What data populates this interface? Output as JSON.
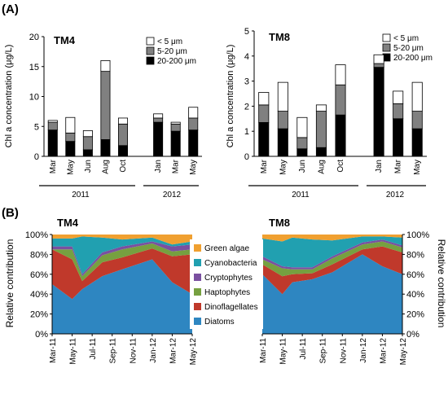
{
  "panels": {
    "a": "(A)",
    "b": "(B)"
  },
  "colors": {
    "lt5": "#ffffff",
    "mid": "#808080",
    "big": "#000000",
    "green_algae": "#f0a030",
    "cyanobacteria": "#21a0b0",
    "cryptophytes": "#7a50a0",
    "haptophytes": "#76a040",
    "dinoflagellates": "#c0392b",
    "diatoms": "#2e86c1"
  },
  "chart_data": [
    {
      "type": "bar",
      "stacked": true,
      "title": "TM4",
      "ylabel": "Chl a concentration (μg/L)",
      "ylim": [
        0,
        20
      ],
      "yticks": [
        0,
        5,
        10,
        15,
        20
      ],
      "categories": [
        "Mar",
        "May",
        "Jun",
        "Aug",
        "Oct",
        "Jan",
        "Mar",
        "May"
      ],
      "positions": [
        0,
        1,
        2,
        3,
        4,
        6,
        7,
        8
      ],
      "years": [
        {
          "label": "2011",
          "from": 0,
          "to": 4
        },
        {
          "label": "2012",
          "from": 6,
          "to": 8
        }
      ],
      "legend": [
        "< 5 μm",
        "5-20 μm",
        "20-200 μm"
      ],
      "series": [
        {
          "name": "20-200 μm",
          "values": [
            4.4,
            2.5,
            1.1,
            2.8,
            1.8,
            5.7,
            4.2,
            4.4
          ]
        },
        {
          "name": "5-20 μm",
          "values": [
            1.3,
            1.4,
            2.2,
            11.4,
            3.6,
            0.7,
            1.2,
            2.0
          ]
        },
        {
          "name": "< 5 μm",
          "values": [
            0.3,
            2.6,
            1.0,
            1.8,
            1.0,
            0.7,
            0.3,
            1.8
          ]
        }
      ]
    },
    {
      "type": "bar",
      "stacked": true,
      "title": "TM8",
      "ylabel": "Chl a concentration (μg/L)",
      "ylim": [
        0,
        5
      ],
      "yticks": [
        0,
        1,
        2,
        3,
        4,
        5
      ],
      "categories": [
        "Mar",
        "May",
        "Jun",
        "Aug",
        "Oct",
        "Jan",
        "Mar",
        "May"
      ],
      "positions": [
        0,
        1,
        2,
        3,
        4,
        6,
        7,
        8
      ],
      "years": [
        {
          "label": "2011",
          "from": 0,
          "to": 4
        },
        {
          "label": "2012",
          "from": 6,
          "to": 8
        }
      ],
      "legend": [
        "< 5 μm",
        "5-20 μm",
        "20-200 μm"
      ],
      "series": [
        {
          "name": "20-200 μm",
          "values": [
            1.35,
            1.1,
            0.3,
            0.35,
            1.65,
            3.55,
            1.5,
            1.1
          ]
        },
        {
          "name": "5-20 μm",
          "values": [
            0.7,
            0.7,
            0.45,
            1.45,
            1.2,
            0.15,
            0.6,
            0.7
          ]
        },
        {
          "name": "< 5 μm",
          "values": [
            0.5,
            1.15,
            0.8,
            0.25,
            0.8,
            0.35,
            0.5,
            1.15
          ]
        }
      ]
    },
    {
      "type": "area",
      "stacked": true,
      "title": "TM4",
      "ylabel": "Relative contribution",
      "ylim": [
        0,
        100
      ],
      "yticks": [
        "0%",
        "20%",
        "40%",
        "60%",
        "80%",
        "100%"
      ],
      "x": [
        "Mar-11",
        "May-11",
        "Jul-11",
        "Sep-11",
        "Nov-11",
        "Jan-12",
        "Mar-12",
        "May-12"
      ],
      "x_points": [
        "Mar-11",
        "May-11",
        "Jun-11",
        "Aug-11",
        "Oct-11",
        "Jan-12",
        "Mar-12",
        "May-12"
      ],
      "x_index": [
        0,
        1,
        1.5,
        2.5,
        3.5,
        5,
        6,
        7
      ],
      "series": [
        {
          "name": "Diatoms",
          "values": [
            50,
            35,
            45,
            58,
            65,
            75,
            52,
            40
          ]
        },
        {
          "name": "Dinoflagellates",
          "values": [
            35,
            40,
            8,
            14,
            12,
            11,
            26,
            40
          ]
        },
        {
          "name": "Haptophytes",
          "values": [
            0,
            10,
            5,
            7,
            8,
            5,
            5,
            5
          ]
        },
        {
          "name": "Cryptophytes",
          "values": [
            3,
            3,
            2,
            3,
            3,
            2,
            5,
            5
          ]
        },
        {
          "name": "Cyanobacteria",
          "values": [
            8,
            8,
            38,
            15,
            7,
            4,
            2,
            3
          ]
        },
        {
          "name": "Green algae",
          "values": [
            4,
            4,
            2,
            3,
            5,
            3,
            10,
            7
          ]
        }
      ]
    },
    {
      "type": "area",
      "stacked": true,
      "title": "TM8",
      "ylabel": "Relative contribution",
      "ylim": [
        0,
        100
      ],
      "yticks": [
        "0%",
        "20%",
        "40%",
        "60%",
        "80%",
        "100%"
      ],
      "x": [
        "Mar-11",
        "May-11",
        "Jul-11",
        "Sep-11",
        "Nov-11",
        "Jan-12",
        "Mar-12",
        "May-12"
      ],
      "x_points": [
        "Mar-11",
        "May-11",
        "Jun-11",
        "Aug-11",
        "Oct-11",
        "Jan-12",
        "Mar-12",
        "May-12"
      ],
      "x_index": [
        0,
        1,
        1.5,
        2.5,
        3.5,
        5,
        6,
        7
      ],
      "series": [
        {
          "name": "Diatoms",
          "values": [
            60,
            40,
            52,
            55,
            62,
            80,
            68,
            60
          ]
        },
        {
          "name": "Dinoflagellates",
          "values": [
            10,
            18,
            8,
            6,
            8,
            5,
            20,
            22
          ]
        },
        {
          "name": "Haptophytes",
          "values": [
            5,
            8,
            5,
            4,
            6,
            5,
            5,
            5
          ]
        },
        {
          "name": "Cryptophytes",
          "values": [
            3,
            2,
            2,
            2,
            2,
            2,
            2,
            2
          ]
        },
        {
          "name": "Cyanobacteria",
          "values": [
            18,
            25,
            30,
            28,
            16,
            6,
            3,
            8
          ]
        },
        {
          "name": "Green algae",
          "values": [
            4,
            7,
            3,
            5,
            6,
            2,
            2,
            3
          ]
        }
      ],
      "legend": [
        "Green algae",
        "Cyanobacteria",
        "Cryptophytes",
        "Haptophytes",
        "Dinoflagellates",
        "Diatoms"
      ]
    }
  ]
}
